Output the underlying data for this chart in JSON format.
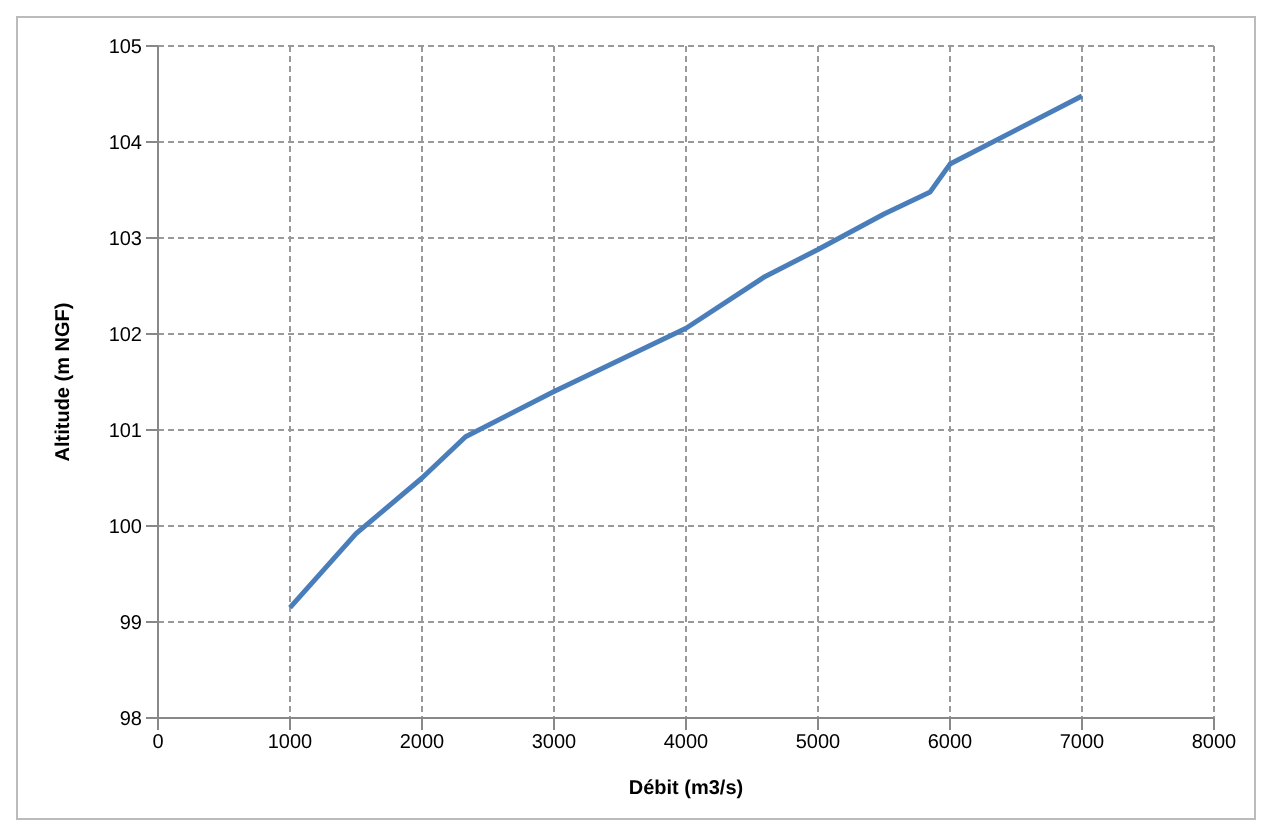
{
  "chart_data": {
    "type": "line",
    "xlabel": "Débit (m3/s)",
    "ylabel": "Altitude (m NGF)",
    "x": [
      1000,
      1500,
      2000,
      2330,
      3000,
      4000,
      4600,
      5000,
      5500,
      5850,
      6000,
      7000
    ],
    "series": [
      {
        "color": "#4a7ebb",
        "values": [
          99.15,
          99.92,
          100.5,
          100.93,
          101.4,
          102.06,
          102.6,
          102.88,
          103.25,
          103.48,
          103.77,
          104.48
        ]
      }
    ],
    "xlim": [
      0,
      8000
    ],
    "xticks": [
      0,
      1000,
      2000,
      3000,
      4000,
      5000,
      6000,
      7000,
      8000
    ],
    "ylim": [
      98,
      105
    ],
    "yticks": [
      98,
      99,
      100,
      101,
      102,
      103,
      104,
      105
    ],
    "grid": true,
    "legend": false,
    "marker": "none",
    "line_style": "solid"
  }
}
